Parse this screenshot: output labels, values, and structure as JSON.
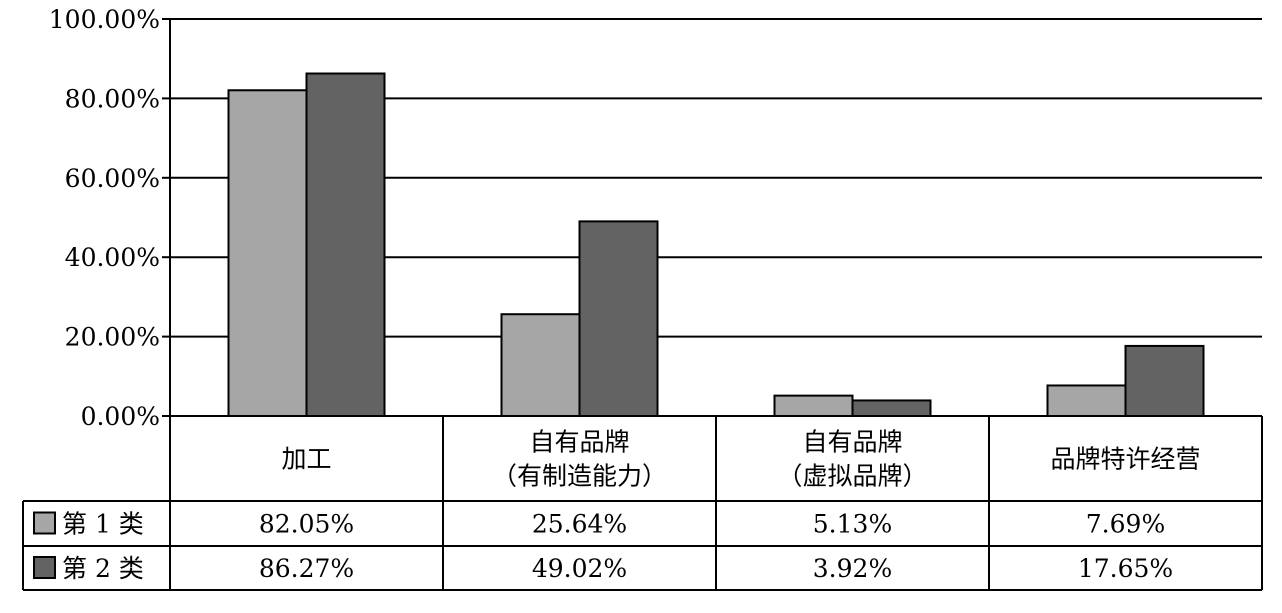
{
  "chart_data": {
    "type": "bar",
    "title": "",
    "xlabel": "",
    "ylabel": "",
    "ylim": [
      0,
      100
    ],
    "y_ticks": [
      "0.00%",
      "20.00%",
      "40.00%",
      "60.00%",
      "80.00%",
      "100.00%"
    ],
    "grid": true,
    "legend": "bottom-left data table",
    "categories": [
      [
        "加工"
      ],
      [
        "自有品牌",
        "（有制造能力）"
      ],
      [
        "自有品牌",
        "（虚拟品牌）"
      ],
      [
        "品牌特许经营"
      ]
    ],
    "series": [
      {
        "name": "第 1 类",
        "color": "#a6a6a6",
        "values": [
          82.05,
          25.64,
          5.13,
          7.69
        ],
        "labels": [
          "82.05%",
          "25.64%",
          "5.13%",
          "7.69%"
        ]
      },
      {
        "name": "第 2 类",
        "color": "#636363",
        "values": [
          86.27,
          49.02,
          3.92,
          17.65
        ],
        "labels": [
          "86.27%",
          "49.02%",
          "3.92%",
          "17.65%"
        ]
      }
    ]
  }
}
